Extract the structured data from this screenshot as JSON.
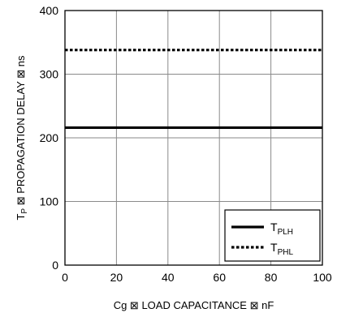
{
  "chart_data": {
    "type": "line",
    "xlabel": "Cg ⊠ LOAD CAPACITANCE ⊠ nF",
    "ylabel": "TP ⊠ PROPAGATION DELAY ⊠ ns",
    "xlim": [
      0,
      100
    ],
    "ylim": [
      0,
      400
    ],
    "xticks": [
      0,
      20,
      40,
      60,
      80,
      100
    ],
    "yticks": [
      0,
      100,
      200,
      300,
      400
    ],
    "grid": true,
    "legend_position": "bottom-right",
    "series": [
      {
        "name": "TPLH",
        "main": "T",
        "sub": "PLH",
        "style": "solid",
        "color": "#000000",
        "x": [
          0,
          100
        ],
        "y": [
          216,
          216
        ]
      },
      {
        "name": "TPHL",
        "main": "T",
        "sub": "PHL",
        "style": "dotted",
        "color": "#000000",
        "x": [
          0,
          100
        ],
        "y": [
          338,
          338
        ]
      }
    ]
  }
}
